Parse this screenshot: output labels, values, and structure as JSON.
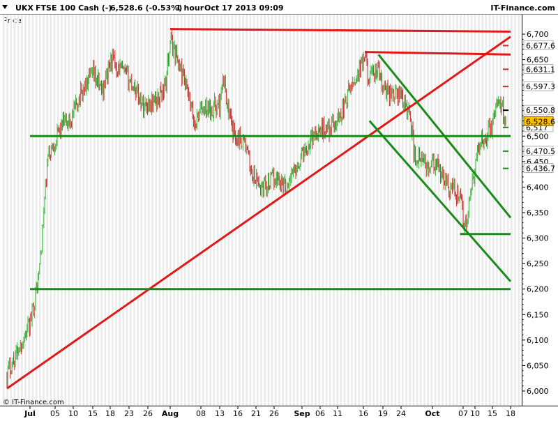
{
  "header": {
    "symbol": "UKX",
    "instrument": "FTSE 100 Cash (-)",
    "last_quote": "6,528.6 (-0.53%)",
    "timeframe": "1 hour",
    "datetime": "Oct 17 2013 09:09",
    "brand": "IT-Finance.com"
  },
  "panel_label": "Price",
  "copyright": "© IT-Finance.com",
  "colors": {
    "up_candle": "#3cb43c",
    "down_candle": "#c82828",
    "support": "#1a8a1a",
    "resistance": "#e01818",
    "current_tag": "#ffc000",
    "column_shade": "#ebebeb"
  },
  "chart_data": {
    "type": "candlestick",
    "ylim": [
      5990,
      6725
    ],
    "y_ticks": [
      "6,700",
      "6,650",
      "6,600",
      "6,550",
      "6,500",
      "6,450",
      "6,400",
      "6,350",
      "6,300",
      "6,250",
      "6,200",
      "6,150",
      "6,100",
      "6,050",
      "6,000"
    ],
    "x_ticks": [
      "Jul",
      "05",
      "10",
      "15",
      "18",
      "23",
      "26",
      "Aug",
      "08",
      "13",
      "16",
      "21",
      "26",
      "Sep",
      "06",
      "11",
      "16",
      "19",
      "24",
      "Oct",
      "07",
      "10",
      "15",
      "18"
    ],
    "major_x_ticks": [
      "Jul",
      "Aug",
      "Sep",
      "Oct"
    ],
    "grid": false,
    "current_price": "6,528.6",
    "price_tags": [
      {
        "label": "6,677.6",
        "kind": "resistance"
      },
      {
        "label": "6,631.1",
        "kind": "resistance"
      },
      {
        "label": "6,597.3",
        "kind": "resistance"
      },
      {
        "label": "6,550.8",
        "kind": "neutral"
      },
      {
        "label": "6,517",
        "kind": "support"
      },
      {
        "label": "6,470.5",
        "kind": "support"
      },
      {
        "label": "6,436.7",
        "kind": "support"
      }
    ],
    "trendlines": [
      {
        "kind": "resistance",
        "from": [
          "Aug 01",
          6710
        ],
        "to": [
          "Oct 18",
          6705
        ]
      },
      {
        "kind": "resistance",
        "from": [
          "Sep 16",
          6665
        ],
        "to": [
          "Oct 18",
          6660
        ]
      },
      {
        "kind": "resistance",
        "from": [
          "Jun 28",
          6005
        ],
        "to": [
          "Oct 18",
          6695
        ]
      },
      {
        "kind": "support",
        "from": [
          "Jul 01",
          6500
        ],
        "to": [
          "Oct 18",
          6500
        ]
      },
      {
        "kind": "support",
        "from": [
          "Jul 01",
          6200
        ],
        "to": [
          "Oct 18",
          6200
        ]
      },
      {
        "kind": "support",
        "from": [
          "Oct 07",
          6308
        ],
        "to": [
          "Oct 18",
          6308
        ]
      },
      {
        "kind": "support",
        "from": [
          "Sep 19",
          6660
        ],
        "to": [
          "Oct 18",
          6340
        ]
      },
      {
        "kind": "support",
        "from": [
          "Sep 17",
          6530
        ],
        "to": [
          "Oct 18",
          6215
        ]
      }
    ],
    "price_path": [
      [
        "Jun 28",
        6035
      ],
      [
        "Jul 01",
        6130
      ],
      [
        "Jul 03",
        6230
      ],
      [
        "Jul 05",
        6460
      ],
      [
        "Jul 08",
        6520
      ],
      [
        "Jul 10",
        6530
      ],
      [
        "Jul 12",
        6580
      ],
      [
        "Jul 15",
        6620
      ],
      [
        "Jul 17",
        6590
      ],
      [
        "Jul 19",
        6650
      ],
      [
        "Jul 22",
        6620
      ],
      [
        "Jul 24",
        6600
      ],
      [
        "Jul 26",
        6560
      ],
      [
        "Jul 29",
        6570
      ],
      [
        "Jul 31",
        6600
      ],
      [
        "Aug 01",
        6690
      ],
      [
        "Aug 02",
        6670
      ],
      [
        "Aug 05",
        6590
      ],
      [
        "Aug 07",
        6520
      ],
      [
        "Aug 08",
        6550
      ],
      [
        "Aug 13",
        6560
      ],
      [
        "Aug 14",
        6610
      ],
      [
        "Aug 16",
        6510
      ],
      [
        "Aug 19",
        6490
      ],
      [
        "Aug 21",
        6420
      ],
      [
        "Aug 23",
        6400
      ],
      [
        "Aug 27",
        6420
      ],
      [
        "Aug 29",
        6400
      ],
      [
        "Sep 03",
        6480
      ],
      [
        "Sep 05",
        6510
      ],
      [
        "Sep 09",
        6520
      ],
      [
        "Sep 11",
        6550
      ],
      [
        "Sep 13",
        6600
      ],
      [
        "Sep 16",
        6650
      ],
      [
        "Sep 17",
        6610
      ],
      [
        "Sep 19",
        6630
      ],
      [
        "Sep 20",
        6590
      ],
      [
        "Sep 24",
        6580
      ],
      [
        "Sep 26",
        6540
      ],
      [
        "Sep 27",
        6460
      ],
      [
        "Sep 30",
        6440
      ],
      [
        "Oct 02",
        6440
      ],
      [
        "Oct 03",
        6420
      ],
      [
        "Oct 07",
        6380
      ],
      [
        "Oct 08",
        6320
      ],
      [
        "Oct 09",
        6360
      ],
      [
        "Oct 10",
        6420
      ],
      [
        "Oct 11",
        6480
      ],
      [
        "Oct 14",
        6520
      ],
      [
        "Oct 15",
        6560
      ],
      [
        "Oct 16",
        6560
      ],
      [
        "Oct 17",
        6530
      ]
    ]
  }
}
